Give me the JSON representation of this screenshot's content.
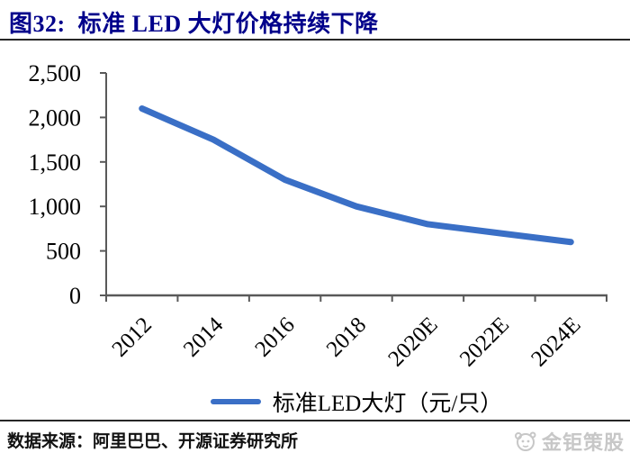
{
  "title": {
    "text": "图32:  标准 LED 大灯价格持续下降",
    "color": "#00008B"
  },
  "chart_data": {
    "type": "line",
    "title": "标准 LED 大灯价格持续下降",
    "categories": [
      "2012",
      "2014",
      "2016",
      "2018",
      "2020E",
      "2022E",
      "2024E"
    ],
    "series": [
      {
        "name": "标准LED大灯（元/只）",
        "values": [
          2100,
          1750,
          1300,
          1000,
          800,
          700,
          600
        ],
        "color": "#3A6FC6"
      }
    ],
    "xlabel": "",
    "ylabel": "",
    "ylim": [
      0,
      2500
    ],
    "y_ticks": [
      0,
      500,
      1000,
      1500,
      2000,
      2500
    ],
    "y_tick_labels": [
      "0",
      "500",
      "1,000",
      "1,500",
      "2,000",
      "2,500"
    ],
    "x_tick_rotation": -45,
    "grid": false,
    "legend_position": "bottom",
    "axis_color": "#595959",
    "label_color": "#000000",
    "line_width": 7
  },
  "legend": {
    "label": "标准LED大灯（元/只）",
    "swatch_color": "#3A6FC6"
  },
  "footer": {
    "source": "数据来源：阿里巴巴、开源证券研究所"
  },
  "watermark": {
    "text": "金钜策股"
  }
}
